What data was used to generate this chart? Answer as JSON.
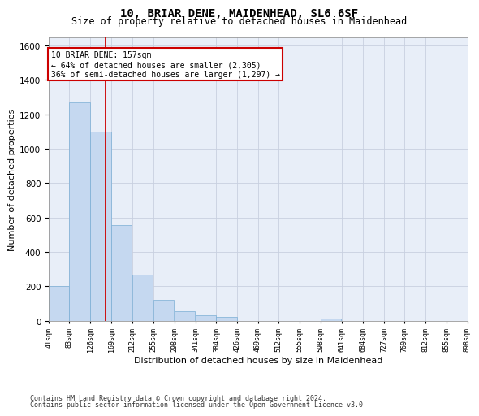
{
  "title": "10, BRIAR DENE, MAIDENHEAD, SL6 6SF",
  "subtitle": "Size of property relative to detached houses in Maidenhead",
  "xlabel": "Distribution of detached houses by size in Maidenhead",
  "ylabel": "Number of detached properties",
  "footer_line1": "Contains HM Land Registry data © Crown copyright and database right 2024.",
  "footer_line2": "Contains public sector information licensed under the Open Government Licence v3.0.",
  "bar_color": "#c5d8f0",
  "bar_edge_color": "#7aadd4",
  "grid_color": "#c8d0e0",
  "background_color": "#e8eef8",
  "annotation_box_color": "#cc0000",
  "property_line_color": "#cc0000",
  "property_size": 157,
  "annotation_text_line1": "10 BRIAR DENE: 157sqm",
  "annotation_text_line2": "← 64% of detached houses are smaller (2,305)",
  "annotation_text_line3": "36% of semi-detached houses are larger (1,297) →",
  "bins": [
    41,
    83,
    126,
    169,
    212,
    255,
    298,
    341,
    384,
    426,
    469,
    512,
    555,
    598,
    641,
    684,
    727,
    769,
    812,
    855,
    898
  ],
  "bin_labels": [
    "41sqm",
    "83sqm",
    "126sqm",
    "169sqm",
    "212sqm",
    "255sqm",
    "298sqm",
    "341sqm",
    "384sqm",
    "426sqm",
    "469sqm",
    "512sqm",
    "555sqm",
    "598sqm",
    "641sqm",
    "684sqm",
    "727sqm",
    "769sqm",
    "812sqm",
    "855sqm",
    "898sqm"
  ],
  "counts": [
    200,
    1270,
    1100,
    555,
    270,
    120,
    55,
    32,
    22,
    0,
    0,
    0,
    0,
    12,
    0,
    0,
    0,
    0,
    0,
    0
  ],
  "ylim": [
    0,
    1650
  ],
  "yticks": [
    0,
    200,
    400,
    600,
    800,
    1000,
    1200,
    1400,
    1600
  ]
}
